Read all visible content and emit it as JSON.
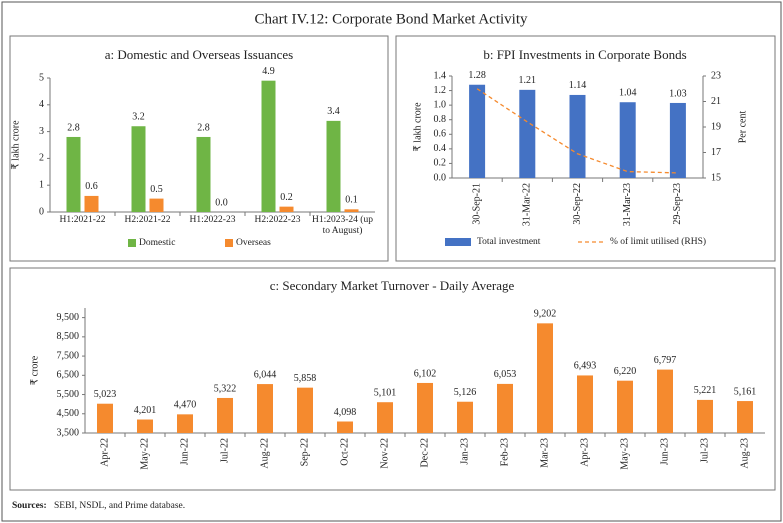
{
  "title": "Chart IV.12: Corporate Bond Market Activity",
  "source_label": "Sources:",
  "source": "SEBI, NSDL, and Prime database.",
  "chart_data": [
    {
      "type": "bar",
      "title": "a: Domestic and Overseas Issuances",
      "y_label": "₹ lakh crore",
      "categories": [
        "H1:2021-22",
        "H2:2021-22",
        "H1:2022-23",
        "H2:2022-23",
        "H1:2023-24 (up to August)"
      ],
      "series": [
        {
          "name": "Domestic",
          "color": "#6fb545",
          "values": [
            2.8,
            3.2,
            2.8,
            4.9,
            3.4
          ]
        },
        {
          "name": "Overseas",
          "color": "#f58a2e",
          "values": [
            0.6,
            0.5,
            0.0,
            0.2,
            0.1
          ],
          "value_labels": [
            "0.6",
            "0.5",
            "0.0",
            "0.2",
            "0.1"
          ]
        }
      ],
      "ylim": [
        0,
        5
      ],
      "yticks": [
        0,
        1,
        2,
        3,
        4,
        5
      ],
      "grid": false,
      "legend": "bottom"
    },
    {
      "type": "bar",
      "title": "b: FPI Investments in Corporate Bonds",
      "y_label": "₹ lakh crore",
      "y2_label": "Per cent",
      "categories": [
        "30-Sep-21",
        "31-Mar-22",
        "30-Sep-22",
        "31-Mar-23",
        "29-Sep-23"
      ],
      "series": [
        {
          "name": "Total investment",
          "color": "#4472c4",
          "type": "bar",
          "values": [
            1.28,
            1.21,
            1.14,
            1.04,
            1.03
          ]
        },
        {
          "name": "% of limit utilised (RHS)",
          "color": "#f58a2e",
          "type": "line",
          "line_style": "dashed",
          "axis": "y2",
          "values": [
            22.0,
            19.4,
            16.9,
            15.5,
            15.4
          ]
        }
      ],
      "ylim": [
        0,
        1.4
      ],
      "yticks": [
        {
          "value": 0,
          "label": "0.0"
        },
        {
          "value": 0.2,
          "label": "0.2"
        },
        {
          "value": 0.4,
          "label": "0.4"
        },
        {
          "value": 0.6,
          "label": "0.6"
        },
        {
          "value": 0.8,
          "label": "0.8"
        },
        {
          "value": 1,
          "label": "1.0"
        },
        {
          "value": 1.2,
          "label": "1.2"
        },
        {
          "value": 1.4,
          "label": "1.4"
        }
      ],
      "y2lim": [
        15,
        23
      ],
      "y2ticks": [
        15,
        17,
        19,
        21,
        23
      ],
      "grid": false,
      "legend": "bottom"
    },
    {
      "type": "bar",
      "title": "c: Secondary Market Turnover - Daily Average",
      "y_label": "₹ crore",
      "categories": [
        "Apr-22",
        "May-22",
        "Jun-22",
        "Jul-22",
        "Aug-22",
        "Sep-22",
        "Oct-22",
        "Nov-22",
        "Dec-22",
        "Jan-23",
        "Feb-23",
        "Mar-23",
        "Apr-23",
        "May-23",
        "Jun-23",
        "Jul-23",
        "Aug-23"
      ],
      "color": "#f58a2e",
      "values": [
        5023,
        4201,
        4470,
        5322,
        6044,
        5858,
        4098,
        5101,
        6102,
        5126,
        6053,
        9202,
        6493,
        6220,
        6797,
        5221,
        5161
      ],
      "value_labels": [
        "5,023",
        "4,201",
        "4,470",
        "5,322",
        "6,044",
        "5,858",
        "4,098",
        "5,101",
        "6,102",
        "5,126",
        "6,053",
        "9,202",
        "6,493",
        "6,220",
        "6,797",
        "5,221",
        "5,161"
      ],
      "ylim": [
        3500,
        10000
      ],
      "yticks": [
        {
          "value": 3500,
          "label": "3,500"
        },
        {
          "value": 4500,
          "label": "4,500"
        },
        {
          "value": 5500,
          "label": "5,500"
        },
        {
          "value": 6500,
          "label": "6,500"
        },
        {
          "value": 7500,
          "label": "7,500"
        },
        {
          "value": 8500,
          "label": "8,500"
        },
        {
          "value": 9500,
          "label": "9,500"
        }
      ],
      "grid": false
    }
  ]
}
